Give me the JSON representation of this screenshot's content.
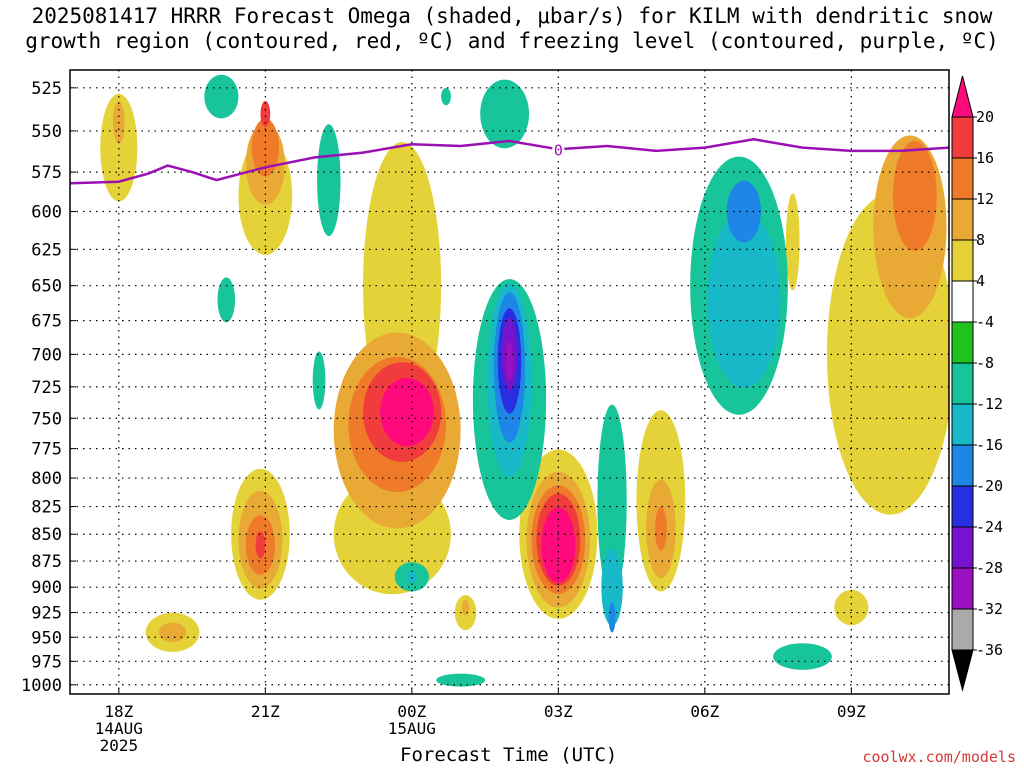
{
  "title_line1": "2025081417 HRRR Forecast Omega (shaded, μbar/s) for KILM with dendritic snow",
  "title_line2": "growth region (contoured, red, ºC) and freezing level (contoured, purple, ºC)",
  "x_axis_title": "Forecast Time (UTC)",
  "credit": "coolwx.com/models",
  "freezing_label": "0",
  "chart_data": {
    "type": "heatmap",
    "title": "2025081417 HRRR Forecast Omega (shaded, μbar/s) for KILM with dendritic snow growth region (contoured, red, ºC) and freezing level (contoured, purple, ºC)",
    "xlabel": "Forecast Time (UTC)",
    "ylabel": "",
    "y_ticks": [
      "525",
      "550",
      "575",
      "600",
      "625",
      "650",
      "675",
      "700",
      "725",
      "750",
      "775",
      "800",
      "825",
      "850",
      "875",
      "900",
      "925",
      "950",
      "975",
      "1000"
    ],
    "y_range": [
      1010,
      515
    ],
    "y_log_scale": true,
    "x_ticks": [
      {
        "label": "18Z",
        "sub1": "14AUG",
        "sub2": "2025",
        "hour": 18
      },
      {
        "label": "21Z",
        "sub1": "",
        "sub2": "",
        "hour": 21
      },
      {
        "label": "00Z",
        "sub1": "15AUG",
        "sub2": "",
        "hour": 24
      },
      {
        "label": "03Z",
        "sub1": "",
        "sub2": "",
        "hour": 27
      },
      {
        "label": "06Z",
        "sub1": "",
        "sub2": "",
        "hour": 30
      },
      {
        "label": "09Z",
        "sub1": "",
        "sub2": "",
        "hour": 33
      }
    ],
    "x_range": [
      17,
      35
    ],
    "grid": true,
    "colorbar": {
      "labels": [
        "20",
        "16",
        "12",
        "8",
        "4",
        "-4",
        "-8",
        "-12",
        "-16",
        "-20",
        "-24",
        "-28",
        "-32",
        "-36"
      ],
      "colors": [
        "#ff0a7c",
        "#f03c3c",
        "#ef7b2a",
        "#e9a935",
        "#e5d238",
        "#ffffff",
        "#1fc21f",
        "#18c49a",
        "#17b8c8",
        "#1d86e6",
        "#2630e0",
        "#7514cc",
        "#9b10c0",
        "#aaaaaa",
        "#000000"
      ]
    },
    "omega_blobs": [
      {
        "v": 4,
        "x": 18.0,
        "p": 560,
        "w": 0.38,
        "h": 65
      },
      {
        "v": 8,
        "x": 18.0,
        "p": 545,
        "w": 0.12,
        "h": 25
      },
      {
        "v": 4,
        "x": 21.0,
        "p": 590,
        "w": 0.55,
        "h": 75
      },
      {
        "v": 8,
        "x": 21.0,
        "p": 570,
        "w": 0.4,
        "h": 50
      },
      {
        "v": 12,
        "x": 21.0,
        "p": 560,
        "w": 0.28,
        "h": 35
      },
      {
        "v": 16,
        "x": 21.0,
        "p": 540,
        "w": 0.1,
        "h": 15
      },
      {
        "v": 4,
        "x": 20.9,
        "p": 850,
        "w": 0.6,
        "h": 120
      },
      {
        "v": 8,
        "x": 20.9,
        "p": 855,
        "w": 0.45,
        "h": 90
      },
      {
        "v": 12,
        "x": 20.9,
        "p": 860,
        "w": 0.3,
        "h": 55
      },
      {
        "v": 16,
        "x": 20.9,
        "p": 860,
        "w": 0.1,
        "h": 25
      },
      {
        "v": 4,
        "x": 23.8,
        "p": 650,
        "w": 0.8,
        "h": 200
      },
      {
        "v": 4,
        "x": 23.6,
        "p": 850,
        "w": 1.2,
        "h": 110
      },
      {
        "v": 8,
        "x": 23.7,
        "p": 760,
        "w": 1.3,
        "h": 160
      },
      {
        "v": 12,
        "x": 23.7,
        "p": 755,
        "w": 1.0,
        "h": 110
      },
      {
        "v": 16,
        "x": 23.8,
        "p": 745,
        "w": 0.8,
        "h": 80
      },
      {
        "v": 20,
        "x": 23.9,
        "p": 745,
        "w": 0.55,
        "h": 55
      },
      {
        "v": 4,
        "x": 27.0,
        "p": 850,
        "w": 0.8,
        "h": 155
      },
      {
        "v": 8,
        "x": 27.0,
        "p": 855,
        "w": 0.65,
        "h": 125
      },
      {
        "v": 12,
        "x": 27.0,
        "p": 855,
        "w": 0.55,
        "h": 100
      },
      {
        "v": 16,
        "x": 27.0,
        "p": 855,
        "w": 0.45,
        "h": 85
      },
      {
        "v": 20,
        "x": 27.0,
        "p": 860,
        "w": 0.35,
        "h": 70
      },
      {
        "v": 4,
        "x": 29.1,
        "p": 820,
        "w": 0.5,
        "h": 160
      },
      {
        "v": 8,
        "x": 29.1,
        "p": 845,
        "w": 0.3,
        "h": 90
      },
      {
        "v": 12,
        "x": 29.1,
        "p": 845,
        "w": 0.12,
        "h": 40
      },
      {
        "v": 4,
        "x": 19.1,
        "p": 945,
        "w": 0.55,
        "h": 40
      },
      {
        "v": 8,
        "x": 19.1,
        "p": 945,
        "w": 0.28,
        "h": 20
      },
      {
        "v": 4,
        "x": 25.1,
        "p": 925,
        "w": 0.22,
        "h": 35
      },
      {
        "v": 8,
        "x": 25.1,
        "p": 920,
        "w": 0.08,
        "h": 15
      },
      {
        "v": 4,
        "x": 33.8,
        "p": 700,
        "w": 1.3,
        "h": 240
      },
      {
        "v": 8,
        "x": 34.2,
        "p": 610,
        "w": 0.75,
        "h": 120
      },
      {
        "v": 12,
        "x": 34.3,
        "p": 590,
        "w": 0.45,
        "h": 70
      },
      {
        "v": 4,
        "x": 33.0,
        "p": 920,
        "w": 0.35,
        "h": 35
      },
      {
        "v": 4,
        "x": 31.8,
        "p": 620,
        "w": 0.14,
        "h": 65
      },
      {
        "v": -8,
        "x": 20.1,
        "p": 530,
        "w": 0.35,
        "h": 25
      },
      {
        "v": -8,
        "x": 24.7,
        "p": 530,
        "w": 0.1,
        "h": 10
      },
      {
        "v": -8,
        "x": 22.3,
        "p": 580,
        "w": 0.24,
        "h": 70
      },
      {
        "v": -8,
        "x": 20.2,
        "p": 660,
        "w": 0.18,
        "h": 32
      },
      {
        "v": -8,
        "x": 22.1,
        "p": 720,
        "w": 0.13,
        "h": 45
      },
      {
        "v": -8,
        "x": 25.9,
        "p": 540,
        "w": 0.5,
        "h": 40
      },
      {
        "v": -8,
        "x": 26.0,
        "p": 735,
        "w": 0.75,
        "h": 190
      },
      {
        "v": -12,
        "x": 26.0,
        "p": 720,
        "w": 0.45,
        "h": 150
      },
      {
        "v": -16,
        "x": 26.0,
        "p": 710,
        "w": 0.32,
        "h": 115
      },
      {
        "v": -20,
        "x": 26.0,
        "p": 705,
        "w": 0.24,
        "h": 80
      },
      {
        "v": -24,
        "x": 26.0,
        "p": 700,
        "w": 0.16,
        "h": 55
      },
      {
        "v": -28,
        "x": 26.0,
        "p": 705,
        "w": 0.08,
        "h": 30
      },
      {
        "v": -8,
        "x": 28.1,
        "p": 820,
        "w": 0.3,
        "h": 170
      },
      {
        "v": -12,
        "x": 28.1,
        "p": 900,
        "w": 0.22,
        "h": 75
      },
      {
        "v": -16,
        "x": 28.1,
        "p": 930,
        "w": 0.07,
        "h": 30
      },
      {
        "v": -8,
        "x": 24.0,
        "p": 890,
        "w": 0.35,
        "h": 28
      },
      {
        "v": -12,
        "x": 24.0,
        "p": 890,
        "w": 0.1,
        "h": 12
      },
      {
        "v": -8,
        "x": 25.0,
        "p": 995,
        "w": 0.5,
        "h": 14
      },
      {
        "v": -8,
        "x": 30.7,
        "p": 650,
        "w": 1.0,
        "h": 180
      },
      {
        "v": -12,
        "x": 30.8,
        "p": 660,
        "w": 0.75,
        "h": 125
      },
      {
        "v": -16,
        "x": 30.8,
        "p": 600,
        "w": 0.35,
        "h": 40
      },
      {
        "v": -8,
        "x": 32.0,
        "p": 970,
        "w": 0.6,
        "h": 28
      }
    ],
    "freezing_level": {
      "name": "0",
      "x": [
        17.0,
        18.0,
        18.6,
        19.0,
        19.5,
        20.0,
        21.0,
        22.0,
        23.0,
        24.0,
        25.0,
        26.0,
        27.0,
        28.0,
        29.0,
        30.0,
        31.0,
        32.0,
        33.0,
        34.0,
        35.0
      ],
      "p": [
        582,
        581,
        576,
        571,
        575,
        580,
        572,
        566,
        563,
        558,
        559,
        556,
        561,
        559,
        562,
        560,
        555,
        560,
        562,
        562,
        560
      ]
    },
    "terrain_band_hpa": 1010
  }
}
